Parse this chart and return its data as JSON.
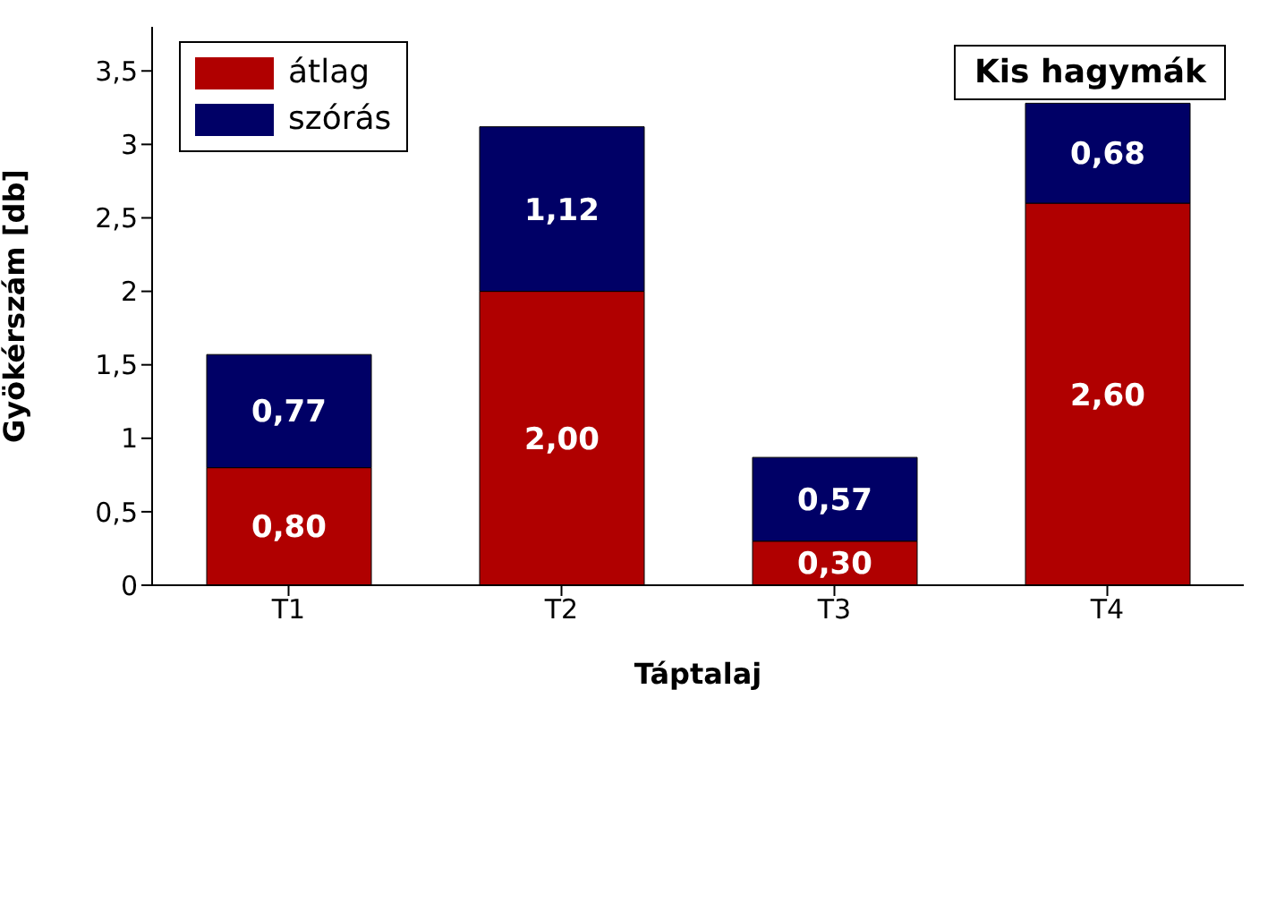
{
  "chart_data": {
    "type": "bar",
    "title": "Kis hagymák",
    "xlabel": "Táptalaj",
    "ylabel": "Gyökérszám [db]",
    "stacked": true,
    "legend": "top left",
    "grid": false,
    "categories": [
      "T1",
      "T2",
      "T3",
      "T4"
    ],
    "series": [
      {
        "name": "átlag",
        "color": "#b00000",
        "values": [
          0.8,
          2.0,
          0.3,
          2.6
        ],
        "value_labels": [
          "0,80",
          "2,00",
          "0,30",
          "2,60"
        ]
      },
      {
        "name": "szórás",
        "color": "#000066",
        "values": [
          0.77,
          1.12,
          0.57,
          0.68
        ],
        "value_labels": [
          "0,77",
          "1,12",
          "0,57",
          "0,68"
        ]
      }
    ],
    "ylim": [
      0,
      3.8
    ],
    "yticks": [
      {
        "value": 0,
        "label": "0"
      },
      {
        "value": 0.5,
        "label": "0,5"
      },
      {
        "value": 1,
        "label": "1"
      },
      {
        "value": 1.5,
        "label": "1,5"
      },
      {
        "value": 2,
        "label": "2"
      },
      {
        "value": 2.5,
        "label": "2,5"
      },
      {
        "value": 3,
        "label": "3"
      },
      {
        "value": 3.5,
        "label": "3,5"
      }
    ]
  }
}
